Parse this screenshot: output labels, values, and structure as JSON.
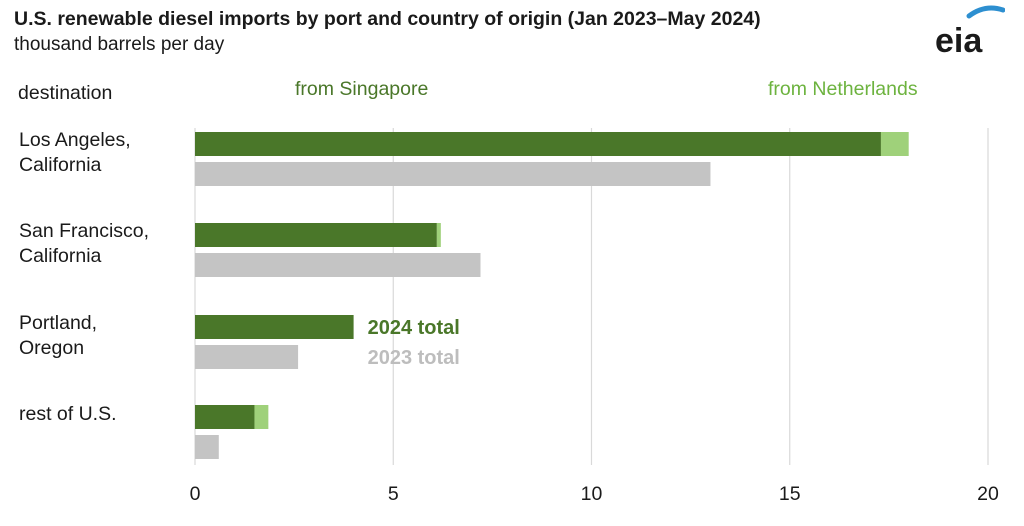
{
  "header": {
    "title": "U.S. renewable diesel imports by port and country of origin (Jan 2023–May 2024)",
    "subtitle": "thousand barrels per day",
    "logo_text": "eia"
  },
  "legend": {
    "destination": "destination",
    "singapore": "from Singapore",
    "netherlands": "from Netherlands",
    "total_2024": "2024 total",
    "total_2023": "2023 total"
  },
  "colors": {
    "singapore": "#4a7729",
    "netherlands": "#9fd17a",
    "total_2023": "#c4c4c4",
    "grid": "#d9d9d9",
    "label_2024": "#4a7729",
    "label_2023": "#bdbdbd",
    "logo_arc": "#2d8fd0"
  },
  "chart_data": {
    "type": "bar",
    "orientation": "horizontal",
    "title": "U.S. renewable diesel imports by port and country of origin (Jan 2023–May 2024)",
    "subtitle": "thousand barrels per day",
    "ylabel": "destination",
    "categories": [
      "Los Angeles,\nCalifornia",
      "San Francisco,\nCalifornia",
      "Portland,\nOregon",
      "rest of U.S."
    ],
    "series": [
      {
        "name": "from Singapore",
        "group": "2024",
        "values": [
          17.3,
          6.1,
          4.0,
          1.5
        ]
      },
      {
        "name": "from Netherlands",
        "group": "2024",
        "values": [
          0.7,
          0.1,
          0.0,
          0.35
        ]
      },
      {
        "name": "2023 total",
        "group": "2023",
        "values": [
          13.0,
          7.2,
          2.6,
          0.6
        ]
      }
    ],
    "xlim": [
      0,
      20
    ],
    "xticks": [
      "0",
      "5",
      "10",
      "15",
      "20"
    ],
    "grid": "vertical"
  }
}
